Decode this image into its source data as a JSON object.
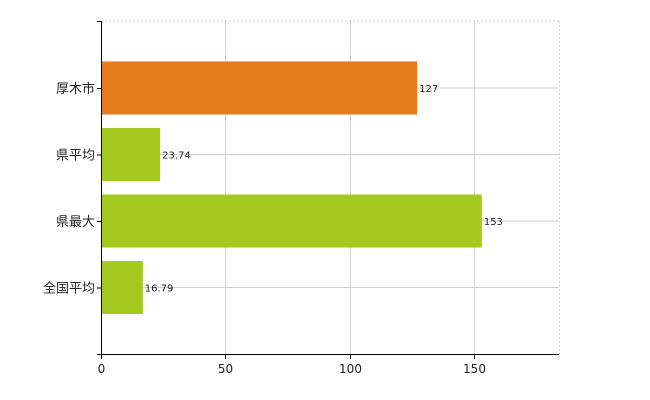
{
  "chart_data": {
    "type": "bar",
    "orientation": "horizontal",
    "categories": [
      "厚木市",
      "県平均",
      "県最大",
      "全国平均"
    ],
    "values": [
      127,
      23.74,
      153,
      16.79
    ],
    "value_labels": [
      "127",
      "23.74",
      "153",
      "16.79"
    ],
    "colors": [
      "#e57a1f",
      "#a3c91e",
      "#a3c91e",
      "#a3c91e"
    ],
    "xlim": [
      0,
      184
    ],
    "x_ticks": [
      0,
      50,
      100,
      150
    ],
    "grid": true,
    "title": "",
    "xlabel": "",
    "ylabel": ""
  }
}
